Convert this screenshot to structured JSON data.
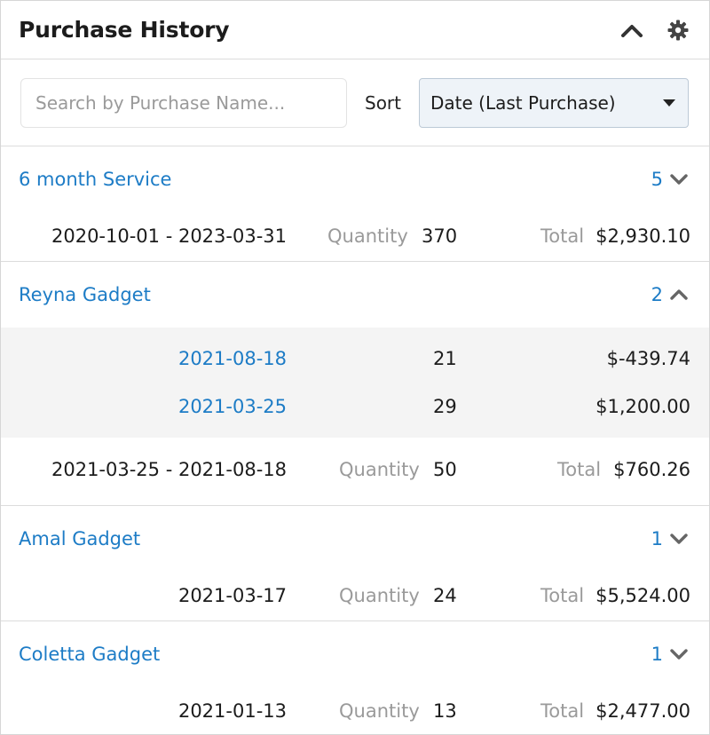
{
  "header": {
    "title": "Purchase History"
  },
  "toolbar": {
    "search_placeholder": "Search by Purchase Name...",
    "sort_label": "Sort",
    "sort_value": "Date (Last Purchase)"
  },
  "groups": [
    {
      "name": "6 month Service",
      "count": "5",
      "expanded": false,
      "summary": {
        "dates": "2020-10-01 - 2023-03-31",
        "quantity_label": "Quantity",
        "quantity": "370",
        "total_label": "Total",
        "total": "$2,930.10"
      }
    },
    {
      "name": "Reyna Gadget",
      "count": "2",
      "expanded": true,
      "details": [
        {
          "date": "2021-08-18",
          "quantity": "21",
          "amount": "$-439.74"
        },
        {
          "date": "2021-03-25",
          "quantity": "29",
          "amount": "$1,200.00"
        }
      ],
      "summary": {
        "dates": "2021-03-25 - 2021-08-18",
        "quantity_label": "Quantity",
        "quantity": "50",
        "total_label": "Total",
        "total": "$760.26"
      }
    },
    {
      "name": "Amal Gadget",
      "count": "1",
      "expanded": false,
      "summary": {
        "dates": "2021-03-17",
        "quantity_label": "Quantity",
        "quantity": "24",
        "total_label": "Total",
        "total": "$5,524.00"
      }
    },
    {
      "name": "Coletta Gadget",
      "count": "1",
      "expanded": false,
      "summary": {
        "dates": "2021-01-13",
        "quantity_label": "Quantity",
        "quantity": "13",
        "total_label": "Total",
        "total": "$2,477.00"
      }
    }
  ],
  "colors": {
    "link": "#1d7cc6",
    "muted": "#9a9a9a",
    "detail_bg": "#f4f4f4"
  },
  "icons": {
    "collapse": "chevron-up-icon",
    "settings": "gear-icon",
    "expand": "chevron-down-icon"
  }
}
